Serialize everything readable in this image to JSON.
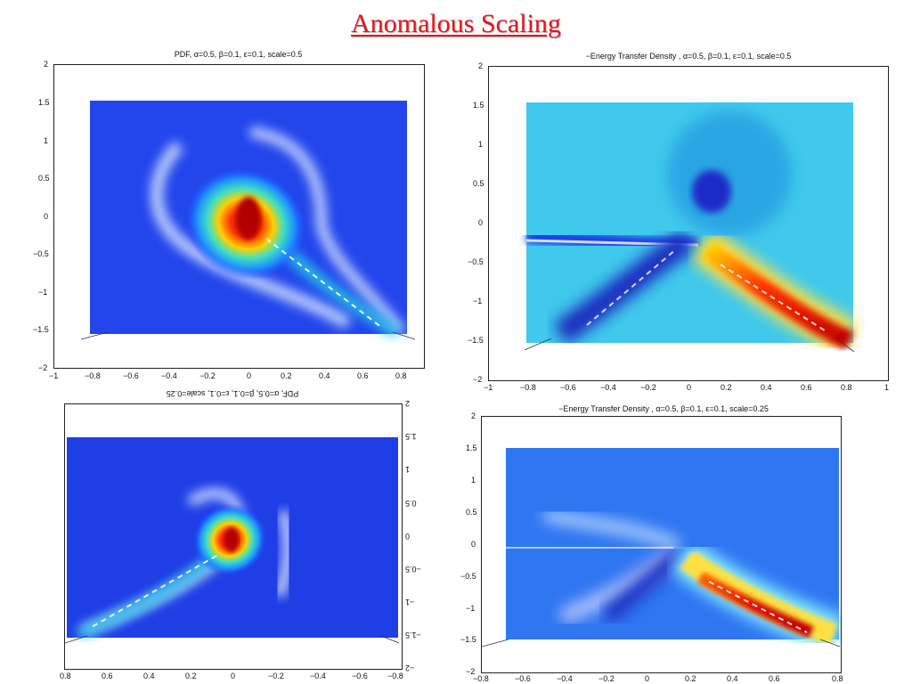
{
  "slide": {
    "title": "Anomalous Scaling"
  },
  "colors": {
    "title": "#e8141c"
  },
  "panels": [
    {
      "id": "tl",
      "title": "PDF,    α=0.5, β=0.1, ε=0.1, scale=0.5",
      "xticks": [
        "−1",
        "−0.8",
        "−0.6",
        "−0.4",
        "−0.2",
        "0",
        "0.2",
        "0.4",
        "0.6",
        "0.8"
      ],
      "yticks": [
        "2",
        "1.5",
        "1",
        "0.5",
        "0",
        "−0.5",
        "−1",
        "−1.5",
        "−2"
      ],
      "mirrored": false
    },
    {
      "id": "tr",
      "title": "−Energy Transfer Density    ,    α=0.5, β=0.1, ε=0.1, scale=0.5",
      "xticks": [
        "−1",
        "−0.8",
        "−0.6",
        "−0.4",
        "−0.2",
        "0",
        "0.2",
        "0.4",
        "0.6",
        "0.8",
        "1"
      ],
      "yticks": [
        "2",
        "1.5",
        "1",
        "0.5",
        "0",
        "−0.5",
        "−1",
        "−1.5",
        "−2"
      ],
      "mirrored": false
    },
    {
      "id": "bl",
      "title": "PDF,    α=0.5, β=0.1, ε=0.1, scale=0.25",
      "xticks": [
        "0.8",
        "0.6",
        "0.4",
        "0.2",
        "0",
        "−0.2",
        "−0.4",
        "−0.6",
        "−0.8"
      ],
      "yticks": [
        "2",
        "1.5",
        "1",
        "0.5",
        "0",
        "−0.5",
        "−1",
        "−1.5",
        "−2"
      ],
      "mirrored": true
    },
    {
      "id": "br",
      "title": "−Energy Transfer Density    ,    α=0.5, β=0.1, ε=0.1, scale=0.25",
      "xticks": [
        "−0.8",
        "−0.6",
        "−0.4",
        "−0.2",
        "0",
        "0.2",
        "0.4",
        "0.6",
        "0.8"
      ],
      "yticks": [
        "2",
        "1.5",
        "1",
        "0.5",
        "0",
        "−0.5",
        "−1",
        "−1.5",
        "−2"
      ],
      "mirrored": false
    }
  ]
}
